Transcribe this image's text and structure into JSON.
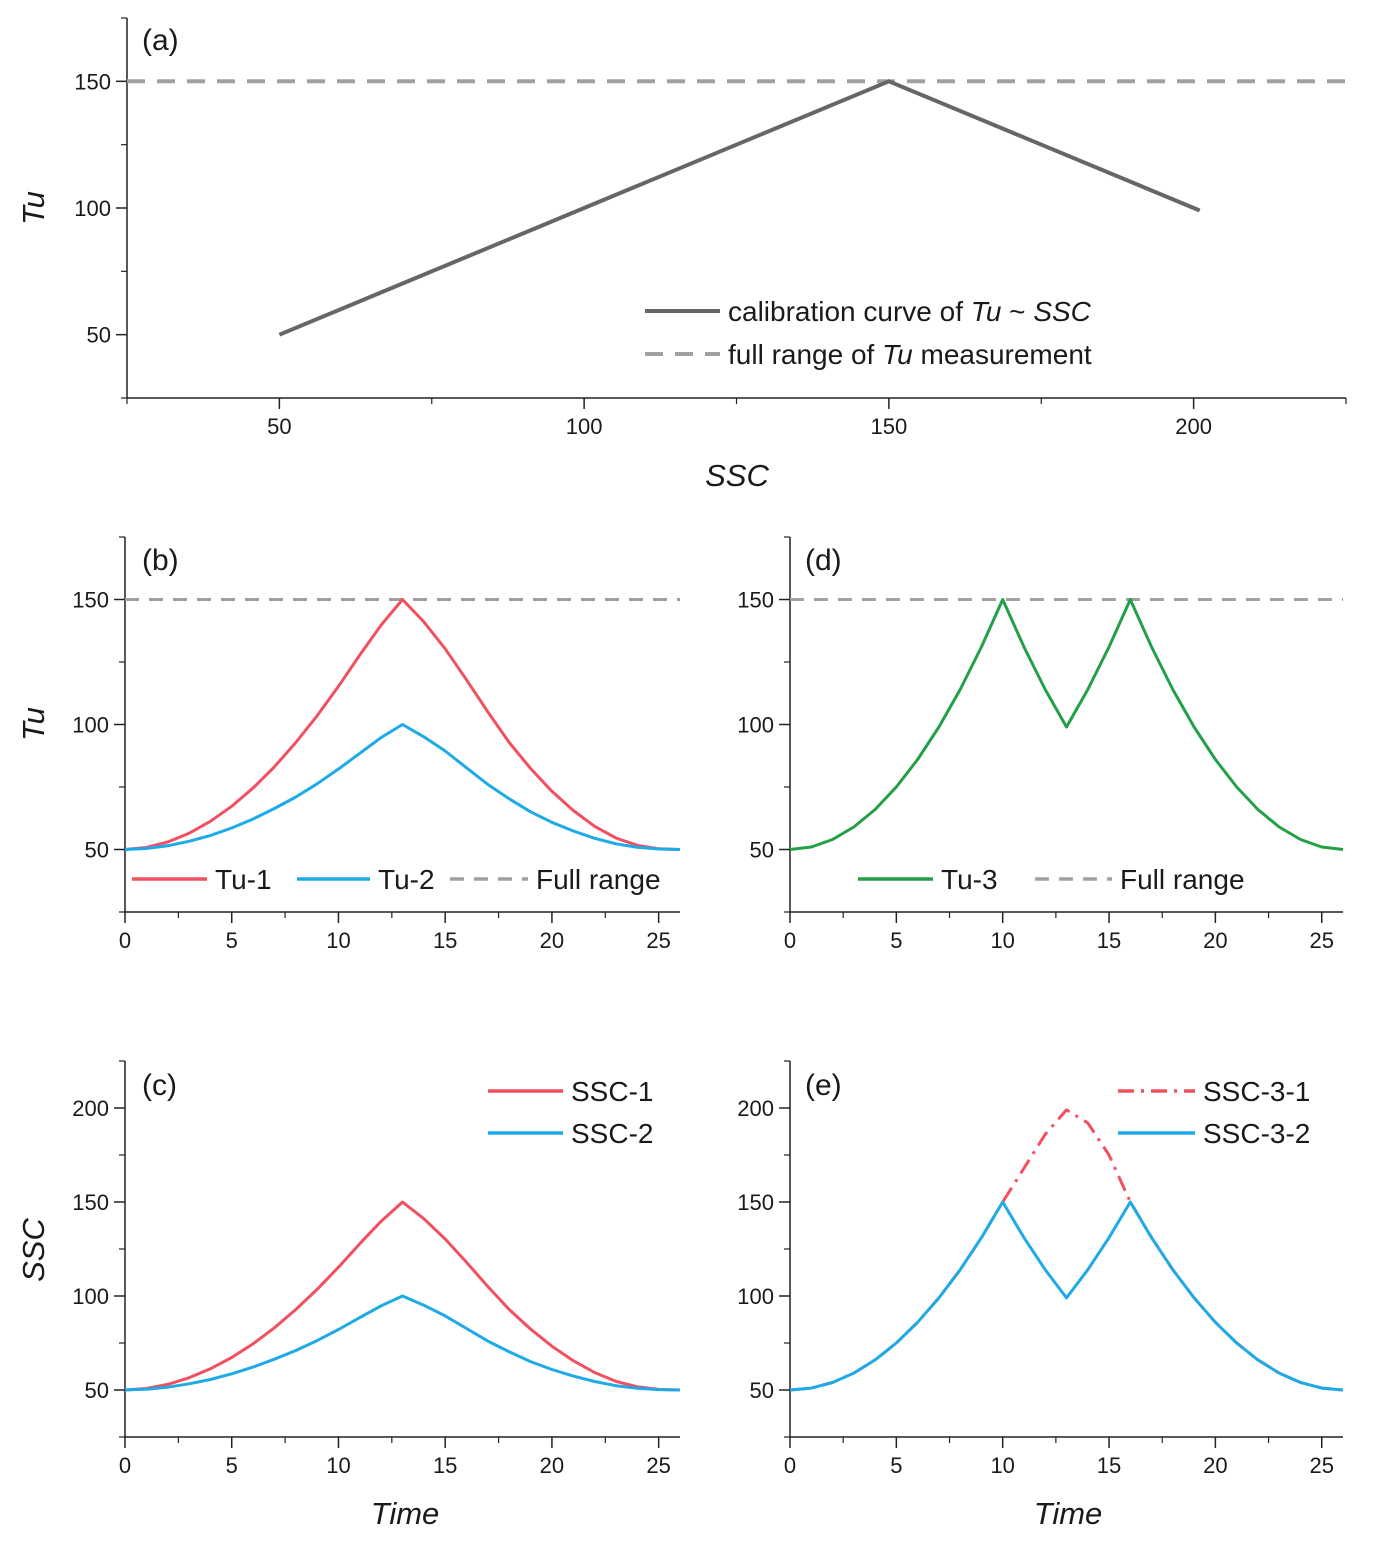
{
  "colors": {
    "calibration": "#666666",
    "fullrange": "#a0a0a0",
    "red": "#f0505f",
    "blue": "#1eaae6",
    "green": "#23a046",
    "axis": "#222222"
  },
  "chart_data": [
    {
      "id": "a",
      "type": "line",
      "panel_label": "(a)",
      "xlabel": "SSC",
      "ylabel": "Tu",
      "xlim": [
        25,
        225
      ],
      "ylim": [
        25,
        175
      ],
      "xticks": [
        50,
        100,
        150,
        200
      ],
      "yticks": [
        50,
        100,
        150
      ],
      "series": [
        {
          "name": "calibration curve of Tu ~ SSC",
          "x": [
            50,
            150,
            201
          ],
          "y": [
            50,
            150,
            99
          ]
        },
        {
          "name": "full range of Tu measurement",
          "x": [
            25,
            225
          ],
          "y": [
            150,
            150
          ]
        }
      ],
      "legend": {
        "position": "bottom-right",
        "entries": [
          {
            "parts": [
              {
                "t": "calibration curve of "
              },
              {
                "t": "Tu",
                "i": true
              },
              {
                "t": " ~ "
              },
              {
                "t": "SSC",
                "i": true
              }
            ]
          },
          {
            "parts": [
              {
                "t": "full range of "
              },
              {
                "t": "Tu",
                "i": true
              },
              {
                "t": " measurement"
              }
            ]
          }
        ]
      }
    },
    {
      "id": "b",
      "type": "line",
      "panel_label": "(b)",
      "xlabel": "",
      "ylabel": "Tu",
      "xlim": [
        0,
        26
      ],
      "ylim": [
        25,
        175
      ],
      "xticks": [
        0,
        5,
        10,
        15,
        20,
        25
      ],
      "yticks": [
        50,
        100,
        150
      ],
      "series": [
        {
          "name": "Tu-1",
          "x": [
            0,
            1,
            2,
            3,
            4,
            5,
            6,
            7,
            8,
            9,
            10,
            11,
            12,
            13,
            14,
            15,
            16,
            17,
            18,
            19,
            20,
            21,
            22,
            23,
            24,
            25,
            26
          ],
          "y": [
            50,
            50.8,
            53,
            56.5,
            61.3,
            67.3,
            74.6,
            83.1,
            92.8,
            103.5,
            115.3,
            127.8,
            139.8,
            150,
            141.1,
            130.3,
            117.9,
            105,
            92.8,
            82.4,
            73.3,
            65.6,
            59.3,
            54.6,
            51.7,
            50.3,
            50
          ]
        },
        {
          "name": "Tu-2",
          "x": [
            0,
            1,
            2,
            3,
            4,
            5,
            6,
            7,
            8,
            9,
            10,
            11,
            12,
            13,
            14,
            15,
            16,
            17,
            18,
            19,
            20,
            21,
            22,
            23,
            24,
            25,
            26
          ],
          "y": [
            50,
            50.4,
            51.5,
            53.3,
            55.6,
            58.6,
            62.2,
            66.4,
            71,
            76.3,
            82.2,
            88.5,
            94.8,
            100,
            95.1,
            89.4,
            82.7,
            76,
            70.3,
            65.1,
            60.9,
            57.4,
            54.5,
            52.3,
            50.9,
            50.2,
            50
          ]
        },
        {
          "name": "Full range",
          "x": [
            0,
            26
          ],
          "y": [
            150,
            150
          ]
        }
      ],
      "legend": {
        "position": "bottom",
        "entries": [
          "Tu-1",
          "Tu-2",
          "Full range"
        ]
      }
    },
    {
      "id": "d",
      "type": "line",
      "panel_label": "(d)",
      "xlabel": "",
      "ylabel": "",
      "xlim": [
        0,
        26
      ],
      "ylim": [
        25,
        175
      ],
      "xticks": [
        0,
        5,
        10,
        15,
        20,
        25
      ],
      "yticks": [
        50,
        100,
        150
      ],
      "series": [
        {
          "name": "Tu-3",
          "x": [
            0,
            1,
            2,
            3,
            4,
            5,
            6,
            7,
            8,
            9,
            10,
            11,
            12,
            13,
            14,
            15,
            16,
            17,
            18,
            19,
            20,
            21,
            22,
            23,
            24,
            25,
            26
          ],
          "y": [
            50,
            51,
            54,
            59,
            66,
            75,
            86,
            99,
            114,
            131,
            150,
            131,
            114,
            99,
            114,
            131,
            150,
            131,
            114,
            99,
            86,
            75,
            66,
            59,
            54,
            51,
            50
          ]
        },
        {
          "name": "Full range",
          "x": [
            0,
            26
          ],
          "y": [
            150,
            150
          ]
        }
      ],
      "legend": {
        "position": "bottom",
        "entries": [
          "Tu-3",
          "Full range"
        ]
      }
    },
    {
      "id": "c",
      "type": "line",
      "panel_label": "(c)",
      "xlabel": "Time",
      "ylabel": "SSC",
      "xlim": [
        0,
        26
      ],
      "ylim": [
        25,
        225
      ],
      "xticks": [
        0,
        5,
        10,
        15,
        20,
        25
      ],
      "yticks": [
        50,
        100,
        150,
        200
      ],
      "series": [
        {
          "name": "SSC-1",
          "x": [
            0,
            1,
            2,
            3,
            4,
            5,
            6,
            7,
            8,
            9,
            10,
            11,
            12,
            13,
            14,
            15,
            16,
            17,
            18,
            19,
            20,
            21,
            22,
            23,
            24,
            25,
            26
          ],
          "y": [
            50,
            50.8,
            53,
            56.5,
            61.3,
            67.3,
            74.6,
            83.1,
            92.8,
            103.5,
            115.3,
            127.8,
            139.8,
            150,
            141.1,
            130.3,
            117.9,
            105,
            92.8,
            82.4,
            73.3,
            65.6,
            59.3,
            54.6,
            51.7,
            50.3,
            50
          ]
        },
        {
          "name": "SSC-2",
          "x": [
            0,
            1,
            2,
            3,
            4,
            5,
            6,
            7,
            8,
            9,
            10,
            11,
            12,
            13,
            14,
            15,
            16,
            17,
            18,
            19,
            20,
            21,
            22,
            23,
            24,
            25,
            26
          ],
          "y": [
            50,
            50.4,
            51.5,
            53.3,
            55.6,
            58.6,
            62.2,
            66.4,
            71,
            76.3,
            82.2,
            88.5,
            94.8,
            100,
            95.1,
            89.4,
            82.7,
            76,
            70.3,
            65.1,
            60.9,
            57.4,
            54.5,
            52.3,
            50.9,
            50.2,
            50
          ]
        }
      ],
      "legend": {
        "position": "top-right",
        "entries": [
          "SSC-1",
          "SSC-2"
        ]
      }
    },
    {
      "id": "e",
      "type": "line",
      "panel_label": "(e)",
      "xlabel": "Time",
      "ylabel": "",
      "xlim": [
        0,
        26
      ],
      "ylim": [
        25,
        225
      ],
      "xticks": [
        0,
        5,
        10,
        15,
        20,
        25
      ],
      "yticks": [
        50,
        100,
        150,
        200
      ],
      "series": [
        {
          "name": "SSC-3-1",
          "x": [
            0,
            1,
            2,
            3,
            4,
            5,
            6,
            7,
            8,
            9,
            10,
            11,
            12,
            13,
            14,
            15,
            16,
            17,
            18,
            19,
            20,
            21,
            22,
            23,
            24,
            25,
            26
          ],
          "y": [
            50,
            51,
            54,
            59,
            66,
            75,
            86,
            99,
            114,
            131,
            150,
            168,
            186,
            199,
            192,
            175,
            150,
            131,
            114,
            99,
            86,
            75,
            66,
            59,
            54,
            51,
            50
          ]
        },
        {
          "name": "SSC-3-2",
          "x": [
            0,
            1,
            2,
            3,
            4,
            5,
            6,
            7,
            8,
            9,
            10,
            11,
            12,
            13,
            14,
            15,
            16,
            17,
            18,
            19,
            20,
            21,
            22,
            23,
            24,
            25,
            26
          ],
          "y": [
            50,
            51,
            54,
            59,
            66,
            75,
            86,
            99,
            114,
            131,
            150,
            131,
            114,
            99,
            114,
            131,
            150,
            131,
            114,
            99,
            86,
            75,
            66,
            59,
            54,
            51,
            50
          ]
        }
      ],
      "legend": {
        "position": "top-right",
        "entries": [
          "SSC-3-1",
          "SSC-3-2"
        ]
      }
    }
  ]
}
